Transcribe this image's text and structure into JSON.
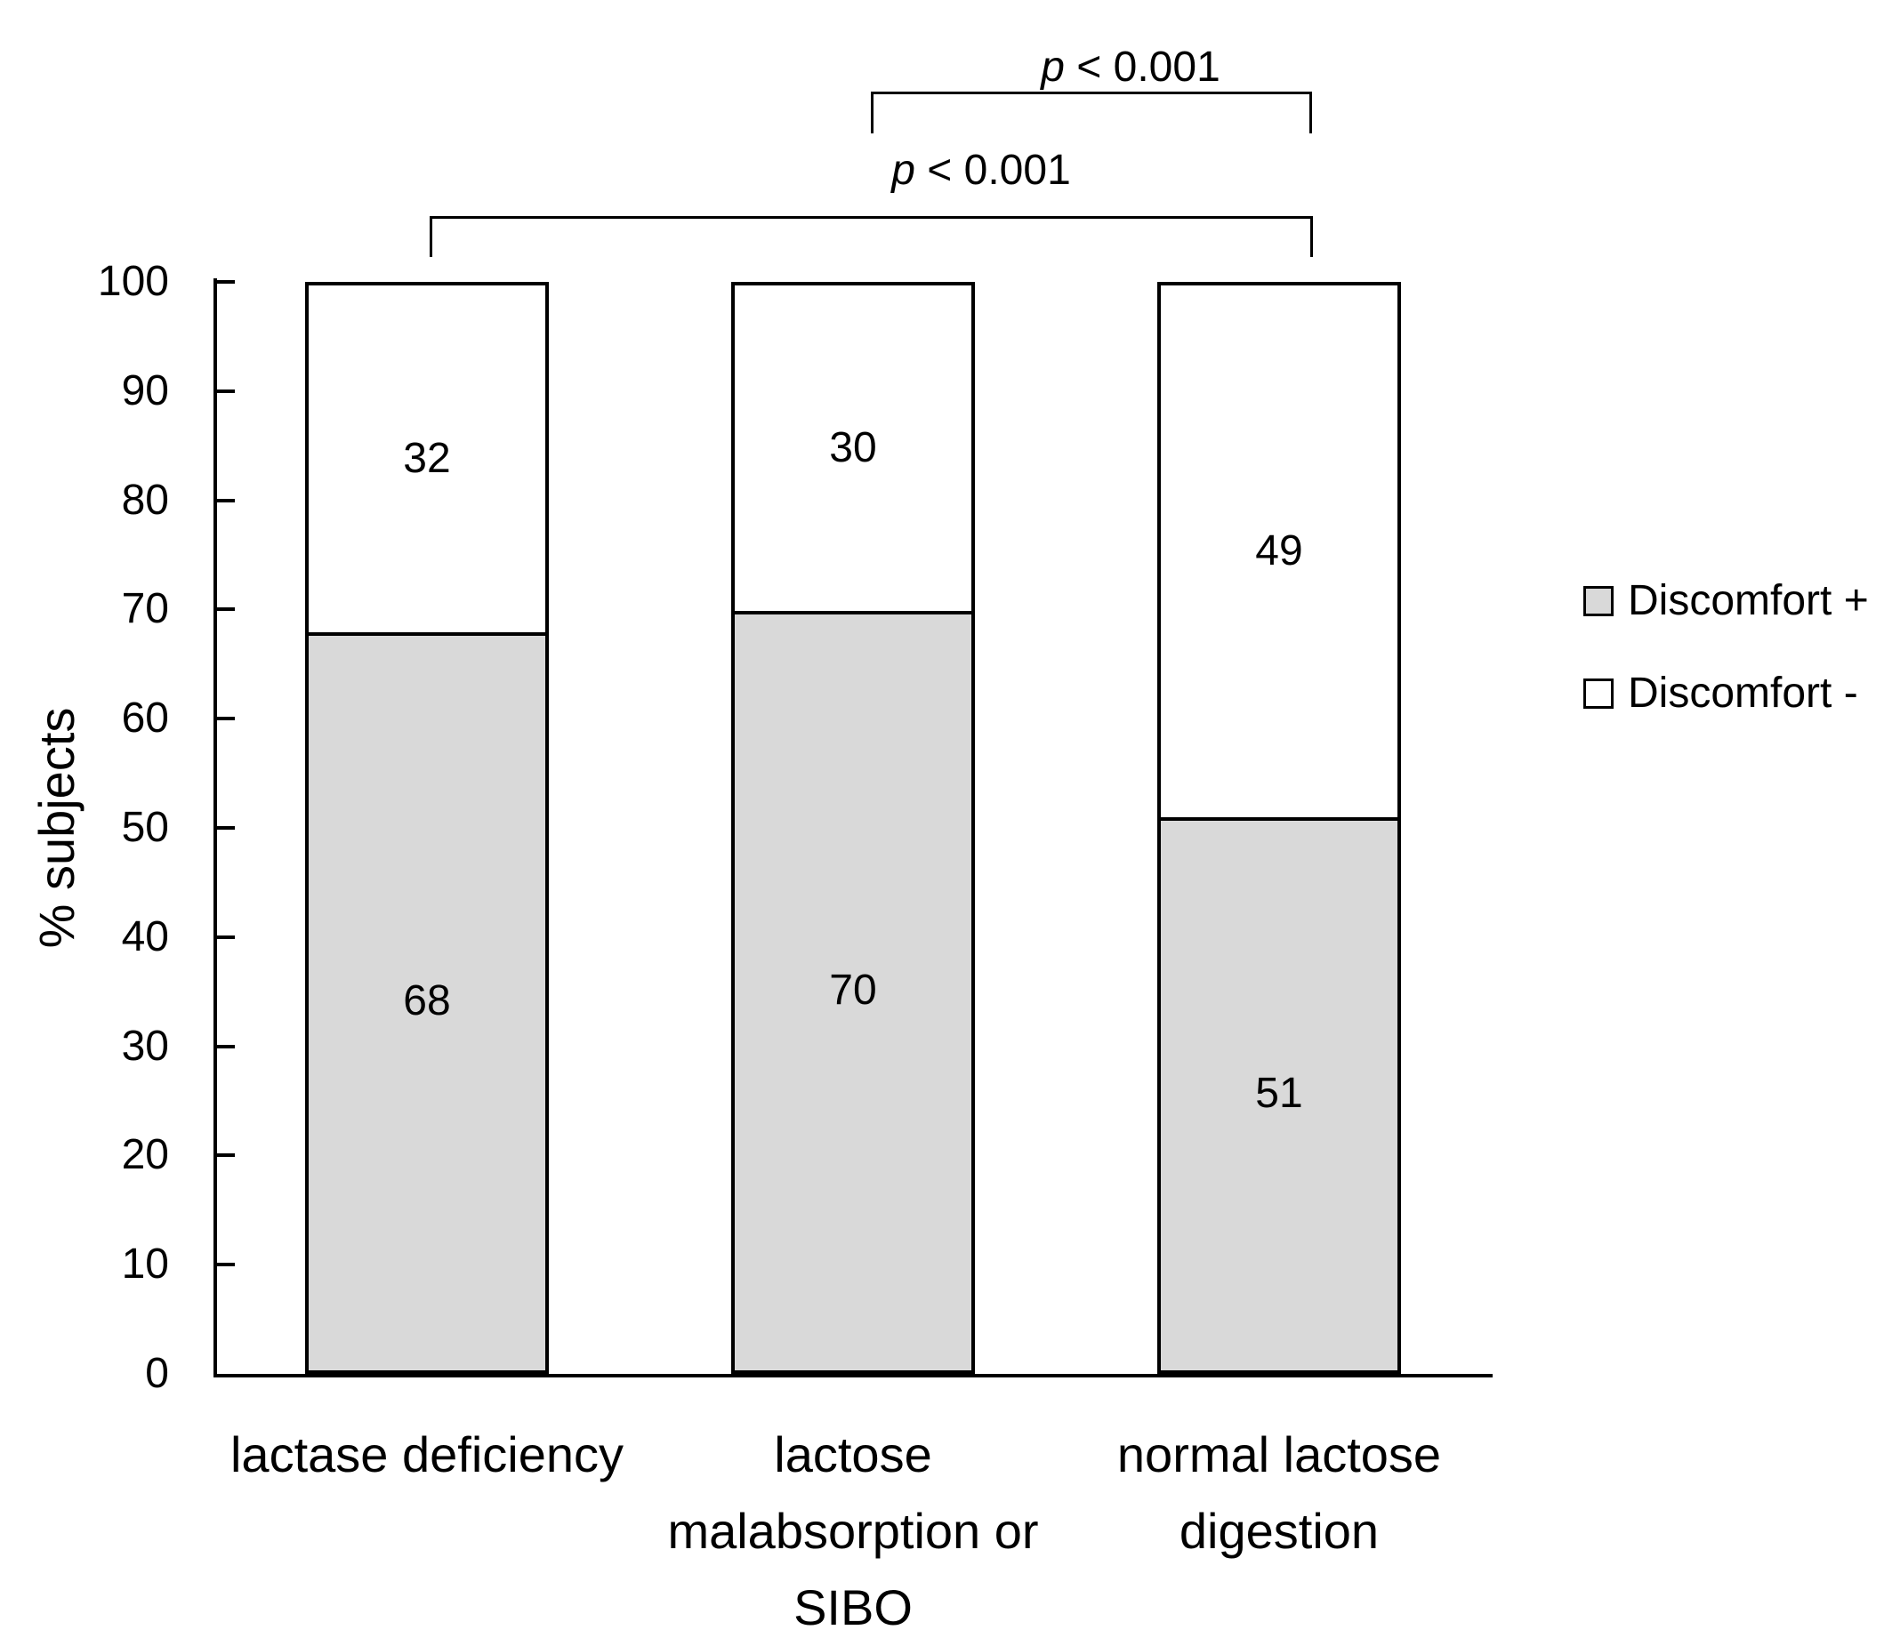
{
  "figure": {
    "background": "#ffffff",
    "line_color": "#000000",
    "gray_fill": "#d9d9d9",
    "white_fill": "#ffffff"
  },
  "chart_data": {
    "type": "bar",
    "stacked": true,
    "orientation": "vertical",
    "categories": [
      "lactase deficiency",
      "lactose\nmalabsorption or\nSIBO",
      "normal lactose\ndigestion"
    ],
    "series": [
      {
        "name": "Discomfort +",
        "values": [
          68,
          70,
          51
        ],
        "color": "#d9d9d9"
      },
      {
        "name": "Discomfort -",
        "values": [
          32,
          30,
          49
        ],
        "color": "#ffffff"
      }
    ],
    "title": "",
    "xlabel": "",
    "ylabel": "% subjects",
    "ylim": [
      0,
      100
    ],
    "ytick_step": 10,
    "grid": false,
    "legend_position": "right",
    "annotations": [
      {
        "label_var": "p",
        "label_rest": " < 0.001",
        "from_category": 0,
        "to_category": 2
      },
      {
        "label_var": "p",
        "label_rest": " < 0.001",
        "from_category": 1,
        "to_category": 2
      }
    ]
  }
}
